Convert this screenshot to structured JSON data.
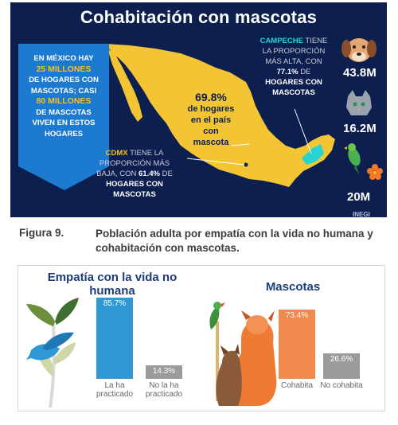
{
  "infographic": {
    "title": "Cohabitación con mascotas",
    "mexico_panel": {
      "line1": "En México hay",
      "line2": "25 millones",
      "line3": "de hogares con",
      "line4": "mascotas; casi",
      "line5": "80 millones",
      "line6": "de mascotas",
      "line7": "viven en estos",
      "line8": "hogares"
    },
    "center": {
      "pct": "69.8%",
      "line1": "de hogares",
      "line2": "en el país",
      "line3": "con",
      "line4": "mascota"
    },
    "cdmx": {
      "name": "CDMX",
      "line1a": "tiene la",
      "line2": "proporción más",
      "line3a": "baja, con",
      "pct": "61.4%",
      "line3b": "de",
      "line4": "hogares con",
      "line5": "mascotas"
    },
    "campeche": {
      "name": "Campeche",
      "line1a": "tiene",
      "line2": "la proporción",
      "line3": "más alta, con",
      "pct": "77.1%",
      "line4b": "de",
      "line5": "hogares con",
      "line6": "mascotas"
    },
    "pets": {
      "dog": {
        "icon": "dog-icon",
        "count": "43.8M"
      },
      "cat": {
        "icon": "cat-icon",
        "count": "16.2M"
      },
      "bird": {
        "icon": "bird-icon",
        "count": "20M"
      }
    },
    "logo_text": "INEGI"
  },
  "caption": {
    "label": "Figura 9.",
    "text": "Población adulta por empatía con la vida no humana y cohabitación con mascotas."
  },
  "chart_data": [
    {
      "type": "bar",
      "title": "Empatía con la vida no humana",
      "categories": [
        "La ha practicado",
        "No la ha practicado"
      ],
      "values": [
        85.7,
        14.3
      ],
      "value_labels": [
        "85.7%",
        "14.3%"
      ],
      "colors": [
        "#2f98d5",
        "#9b9b9b"
      ],
      "ylim": [
        0,
        100
      ]
    },
    {
      "type": "bar",
      "title": "Mascotas",
      "categories": [
        "Cohabita",
        "No cohabita"
      ],
      "values": [
        73.4,
        26.6
      ],
      "value_labels": [
        "73.4%",
        "26.6%"
      ],
      "colors": [
        "#ef8a4c",
        "#9b9b9b"
      ],
      "ylim": [
        0,
        100
      ]
    }
  ],
  "colors": {
    "navy": "#0c1f4f",
    "map_yellow": "#f3c534",
    "highlight_blue": "#1d7ad1",
    "campeche_teal": "#29d3d3",
    "title_blue": "#1d3c7c"
  }
}
